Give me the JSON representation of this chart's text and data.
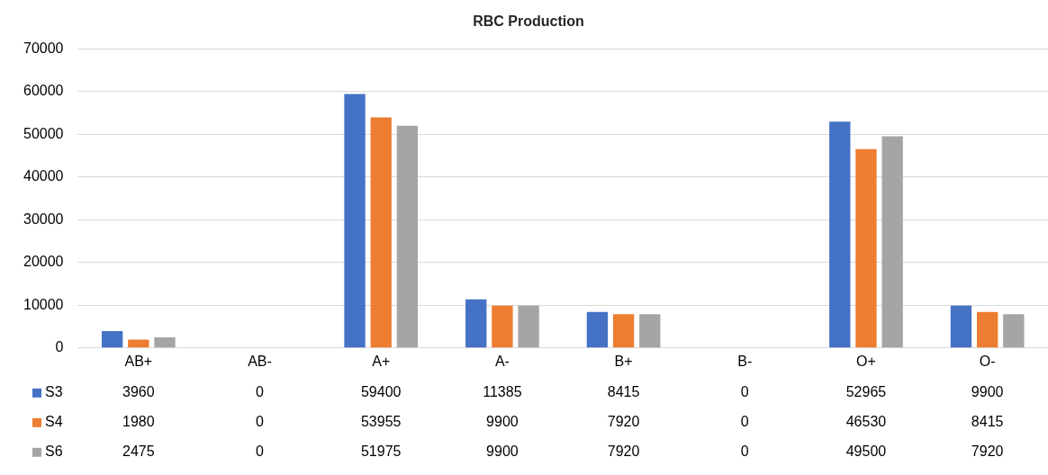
{
  "chart_data": {
    "type": "bar",
    "title": "RBC Production",
    "categories": [
      "AB+",
      "AB-",
      "A+",
      "A-",
      "B+",
      "B-",
      "O+",
      "O-"
    ],
    "series": [
      {
        "name": "S3",
        "color": "#4472c4",
        "values": [
          3960,
          0,
          59400,
          11385,
          8415,
          0,
          52965,
          9900
        ]
      },
      {
        "name": "S4",
        "color": "#ed7d31",
        "values": [
          1980,
          0,
          53955,
          9900,
          7920,
          0,
          46530,
          8415
        ]
      },
      {
        "name": "S6",
        "color": "#a5a5a5",
        "values": [
          2475,
          0,
          51975,
          9900,
          7920,
          0,
          49500,
          7920
        ]
      }
    ],
    "ylim": [
      0,
      70000
    ],
    "yticks": [
      0,
      10000,
      20000,
      30000,
      40000,
      50000,
      60000,
      70000
    ],
    "grid": "y",
    "legend": "bottom",
    "data_labels": true
  }
}
